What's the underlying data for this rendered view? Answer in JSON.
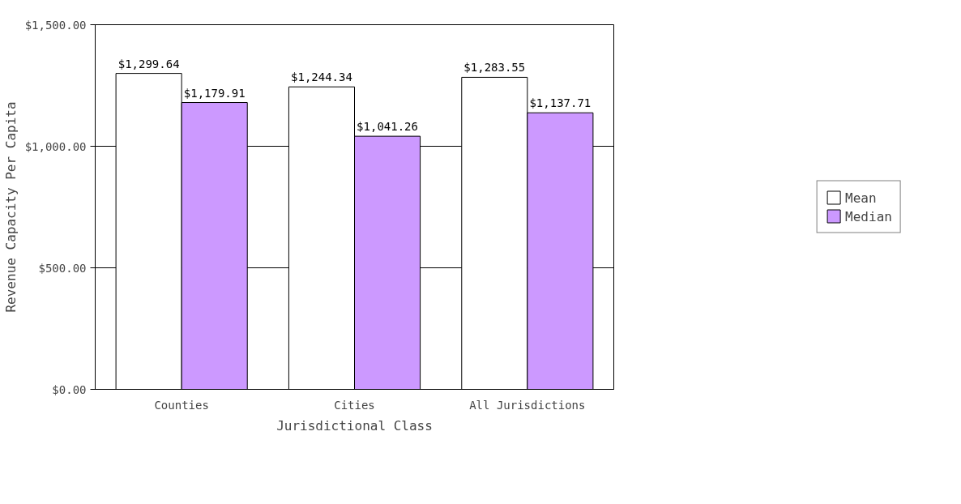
{
  "chart_data": {
    "type": "bar",
    "xlabel": "Jurisdictional Class",
    "ylabel": "Revenue Capacity Per Capita",
    "categories": [
      "Counties",
      "Cities",
      "All Jurisdictions"
    ],
    "series": [
      {
        "name": "Mean",
        "color": "#ffffff",
        "values": [
          1299.64,
          1244.34,
          1283.55
        ],
        "value_labels": [
          "$1,299.64",
          "$1,244.34",
          "$1,283.55"
        ]
      },
      {
        "name": "Median",
        "color": "#cc99ff",
        "values": [
          1179.91,
          1041.26,
          1137.71
        ],
        "value_labels": [
          "$1,179.91",
          "$1,041.26",
          "$1,137.71"
        ]
      }
    ],
    "ylim": [
      0,
      1500
    ],
    "yticks": [
      {
        "value": 0,
        "label": "$0.00"
      },
      {
        "value": 500,
        "label": "$500.00"
      },
      {
        "value": 1000,
        "label": "$1,000.00"
      },
      {
        "value": 1500,
        "label": "$1,500.00"
      }
    ],
    "grid": "y",
    "legend": "right"
  }
}
